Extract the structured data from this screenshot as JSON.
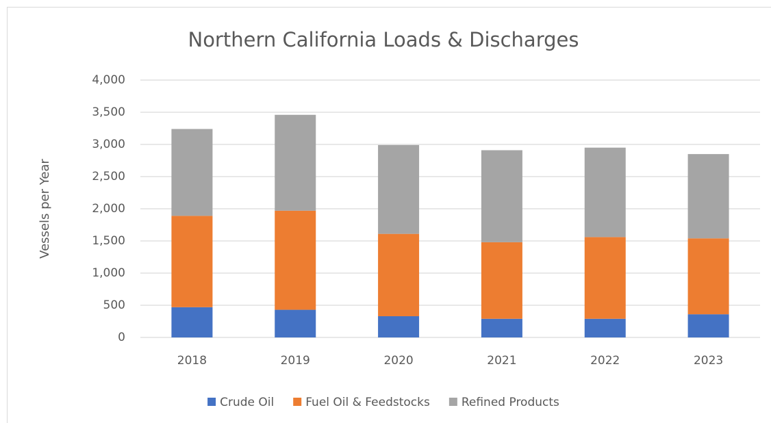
{
  "chart_data": {
    "type": "stacked_bar",
    "title": "Northern California Loads & Discharges",
    "y_label": "Vessels per Year",
    "categories": [
      "2018",
      "2019",
      "2020",
      "2021",
      "2022",
      "2023"
    ],
    "series": [
      {
        "name": "Crude Oil",
        "color": "#4472c4",
        "values": [
          470,
          430,
          330,
          290,
          290,
          360
        ]
      },
      {
        "name": "Fuel Oil & Feedstocks",
        "color": "#ed7d31",
        "values": [
          1420,
          1540,
          1280,
          1190,
          1270,
          1180
        ]
      },
      {
        "name": "Refined Products",
        "color": "#a5a5a5",
        "values": [
          1350,
          1490,
          1380,
          1430,
          1390,
          1310
        ]
      }
    ],
    "ylim": [
      0,
      4000
    ],
    "yticks": [
      0,
      500,
      {
        "value": 1000,
        "label": "1,000"
      },
      {
        "value": 1500,
        "label": "1,500"
      },
      {
        "value": 2000,
        "label": "2,000"
      },
      {
        "value": 2500,
        "label": "2,500"
      },
      {
        "value": 3000,
        "label": "3,000"
      },
      {
        "value": 3500,
        "label": "3,500"
      },
      {
        "value": 4000,
        "label": "4,000"
      }
    ],
    "grid": true,
    "legend": "bottom"
  }
}
